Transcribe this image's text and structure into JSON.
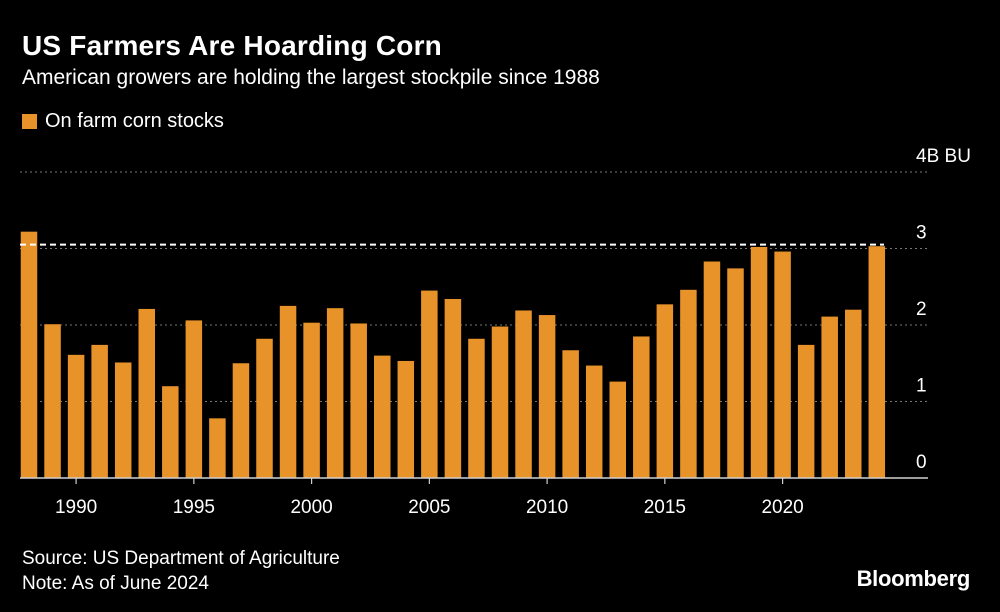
{
  "title": "US Farmers Are Hoarding Corn",
  "subtitle": "American growers are holding the largest stockpile since 1988",
  "legend": {
    "label": "On farm corn stocks",
    "color": "#e8922a"
  },
  "source": "Source: US Department of Agriculture",
  "note": "Note: As of June 2024",
  "logo": "Bloomberg",
  "colors": {
    "bar": "#e8922a",
    "background": "#000000",
    "grid": "#777777",
    "reference": "#ffffff"
  },
  "chart_data": {
    "type": "bar",
    "ylabel": "",
    "y_unit_label": "4B BU",
    "ylim": [
      0,
      4
    ],
    "y_ticks": [
      {
        "value": 4,
        "label": "4B BU"
      },
      {
        "value": 3,
        "label": "3"
      },
      {
        "value": 2,
        "label": "2"
      },
      {
        "value": 1,
        "label": "1"
      },
      {
        "value": 0,
        "label": "0"
      }
    ],
    "x_tick_labels": [
      "1990",
      "1995",
      "2000",
      "2005",
      "2010",
      "2015",
      "2020"
    ],
    "grid": true,
    "reference_line": {
      "value": 3.05,
      "style": "dashed"
    },
    "series": [
      {
        "name": "On farm corn stocks",
        "x": [
          1988,
          1989,
          1990,
          1991,
          1992,
          1993,
          1994,
          1995,
          1996,
          1997,
          1998,
          1999,
          2000,
          2001,
          2002,
          2003,
          2004,
          2005,
          2006,
          2007,
          2008,
          2009,
          2010,
          2011,
          2012,
          2013,
          2014,
          2015,
          2016,
          2017,
          2018,
          2019,
          2020,
          2021,
          2022,
          2023,
          2024
        ],
        "values": [
          3.22,
          2.01,
          1.61,
          1.74,
          1.51,
          2.21,
          1.2,
          2.06,
          0.78,
          1.5,
          1.82,
          2.25,
          2.03,
          2.22,
          2.02,
          1.6,
          1.53,
          2.45,
          2.34,
          1.82,
          1.98,
          2.19,
          2.13,
          1.67,
          1.47,
          1.26,
          1.85,
          2.27,
          2.46,
          2.83,
          2.74,
          3.02,
          2.96,
          1.74,
          2.11,
          2.2,
          3.03
        ]
      }
    ]
  }
}
